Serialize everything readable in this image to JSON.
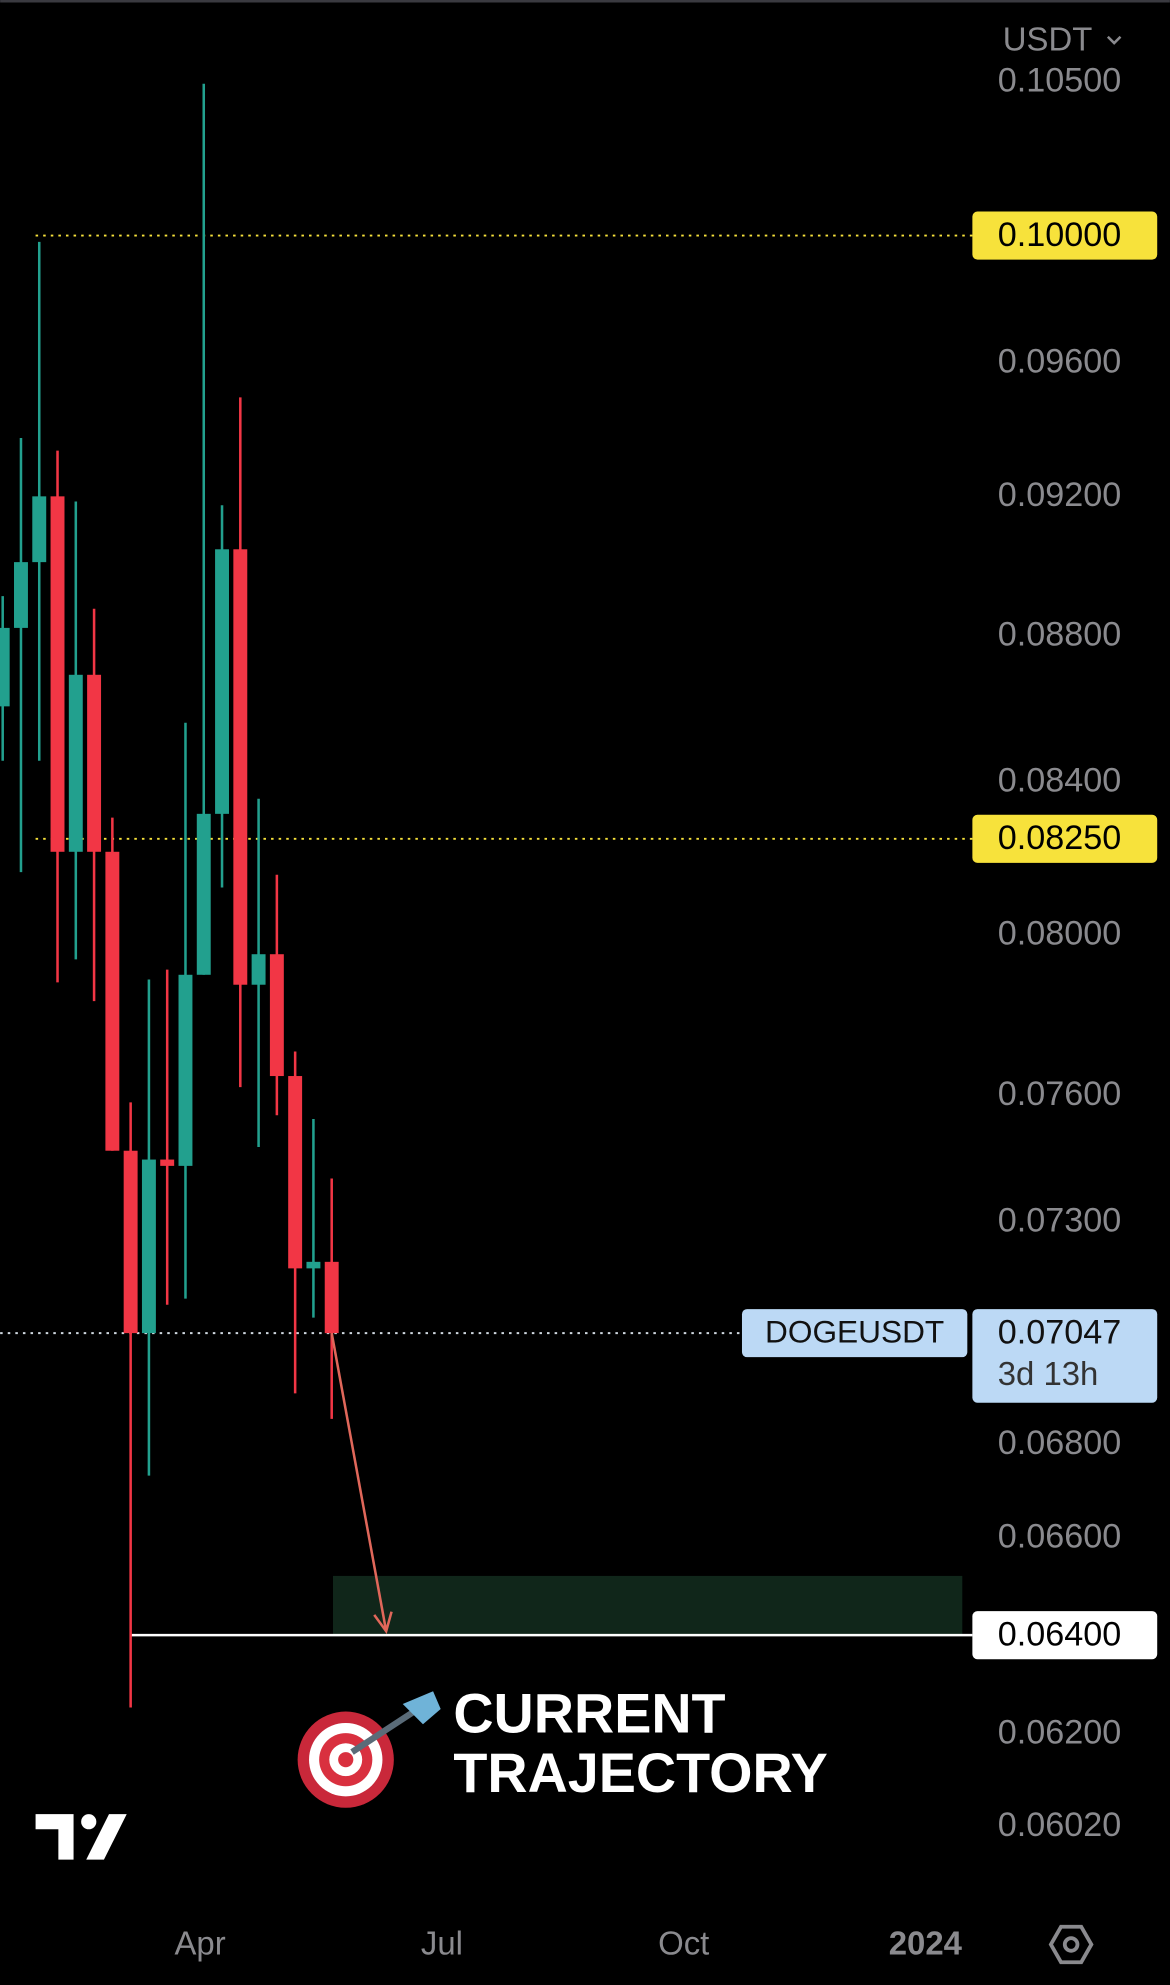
{
  "header": {
    "currency": "USDT"
  },
  "chart_data": {
    "type": "candlestick",
    "symbol": "DOGEUSDT",
    "countdown": "3d 13h",
    "x": [
      0,
      1,
      2,
      3,
      4,
      5,
      6,
      7,
      8,
      9,
      10,
      11,
      12,
      13,
      14,
      15,
      16,
      17,
      18
    ],
    "open": [
      0.08606,
      0.08824,
      0.09011,
      0.09202,
      0.08216,
      0.08693,
      0.08216,
      0.07469,
      0.07047,
      0.07448,
      0.07433,
      0.079,
      0.08316,
      0.09048,
      0.07875,
      0.07952,
      0.07649,
      0.07194,
      0.07209
    ],
    "high": [
      0.08914,
      0.09375,
      0.0998,
      0.09337,
      0.09187,
      0.08878,
      0.08306,
      0.07585,
      0.07888,
      0.07913,
      0.08561,
      0.10496,
      0.09176,
      0.09497,
      0.08356,
      0.08156,
      0.07709,
      0.07545,
      0.07403
    ],
    "low": [
      0.08458,
      0.08163,
      0.08458,
      0.07881,
      0.07939,
      0.07834,
      0.07469,
      0.06254,
      0.06734,
      0.07111,
      0.07125,
      0.079,
      0.08123,
      0.07622,
      0.07478,
      0.07554,
      0.06913,
      0.07082,
      0.06857
    ],
    "close": [
      0.08824,
      0.09011,
      0.09202,
      0.08216,
      0.08693,
      0.08216,
      0.07469,
      0.07047,
      0.07448,
      0.07433,
      0.079,
      0.08316,
      0.09048,
      0.07875,
      0.07952,
      0.07649,
      0.07194,
      0.07209,
      0.07047
    ],
    "up_color": "#22a08e",
    "down_color": "#f23645",
    "xlim": [
      -0.14,
      53.19
    ],
    "xticks": [
      {
        "value": 10.8,
        "label": "Apr"
      },
      {
        "value": 24.03,
        "label": "Jul"
      },
      {
        "value": 37.26,
        "label": "Oct"
      },
      {
        "value": 50.48,
        "label": "2024"
      }
    ],
    "ylim": [
      0.0586,
      0.1078
    ],
    "log_scale": true,
    "yticks": [
      {
        "value": 0.105,
        "label": "0.10500"
      },
      {
        "value": 0.096,
        "label": "0.09600"
      },
      {
        "value": 0.092,
        "label": "0.09200"
      },
      {
        "value": 0.088,
        "label": "0.08800"
      },
      {
        "value": 0.084,
        "label": "0.08400"
      },
      {
        "value": 0.08,
        "label": "0.08000"
      },
      {
        "value": 0.076,
        "label": "0.07600"
      },
      {
        "value": 0.073,
        "label": "0.07300"
      },
      {
        "value": 0.068,
        "label": "0.06800"
      },
      {
        "value": 0.066,
        "label": "0.06600"
      },
      {
        "value": 0.062,
        "label": "0.06200"
      },
      {
        "value": 0.0602,
        "label": "0.06020"
      }
    ],
    "last_price": 0.07047,
    "levels": [
      {
        "value": 0.1,
        "label": "0.10000",
        "color": "#f7e23b",
        "style": "dotted"
      },
      {
        "value": 0.0825,
        "label": "0.08250",
        "color": "#f7e23b",
        "style": "dotted"
      },
      {
        "value": 0.064,
        "label": "0.06400",
        "color": "#ffffff",
        "style": "solid",
        "x_start": 6.99
      }
    ],
    "zone": {
      "x": [
        18.07,
        52.5
      ],
      "y": [
        0.064,
        0.06522
      ],
      "color": "#10261a"
    },
    "arrow": {
      "x": [
        18,
        20.98
      ],
      "y": [
        0.07047,
        0.06408
      ],
      "color": "#e0675a"
    },
    "annotation": [
      "CURRENT",
      "TRAJECTORY"
    ]
  }
}
